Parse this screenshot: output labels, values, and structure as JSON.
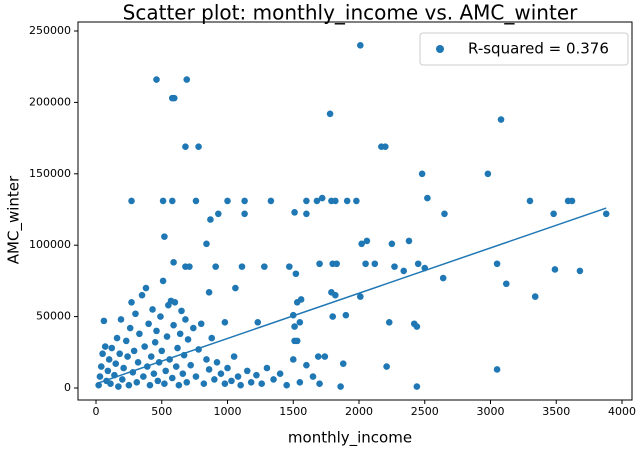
{
  "chart_data": {
    "type": "scatter",
    "title": "Scatter plot: monthly_income vs. AMC_winter",
    "x_label": "monthly_income",
    "y_label": "AMC_winter",
    "xlim": [
      -137,
      4076
    ],
    "ylim": [
      -8400,
      256300
    ],
    "xticks": [
      0,
      500,
      1000,
      1500,
      2000,
      2500,
      3000,
      3500,
      4000
    ],
    "yticks": [
      0,
      50000,
      100000,
      150000,
      200000,
      250000
    ],
    "legend_position": "upper right",
    "series": [
      {
        "name": "R-squared = 0.376",
        "color": "#1f77b4",
        "x": [
          2010,
          460,
          690,
          580,
          595,
          1780,
          3080,
          680,
          780,
          2170,
          2200,
          2480,
          2980,
          2520,
          270,
          510,
          580,
          760,
          1000,
          1130,
          1330,
          1600,
          1680,
          1720,
          1790,
          1820,
          1910,
          1980,
          3300,
          3590,
          3620,
          870,
          930,
          1130,
          1510,
          1600,
          2650,
          3880,
          3480,
          520,
          840,
          2020,
          2060,
          2250,
          2380,
          590,
          680,
          710,
          910,
          1110,
          1280,
          1470,
          1520,
          1700,
          1800,
          1830,
          2050,
          2120,
          2270,
          2340,
          2450,
          2500,
          2640,
          3050,
          3120,
          3490,
          3680,
          3340,
          1790,
          1820,
          2010,
          1800,
          1900,
          2230,
          2420,
          2440,
          1500,
          1510,
          1550,
          1230,
          980,
          860,
          1060,
          1530,
          1560,
          1690,
          1740,
          1880,
          1860,
          3050,
          1510,
          1530,
          2440,
          2210,
          20,
          30,
          40,
          50,
          60,
          70,
          80,
          90,
          100,
          110,
          120,
          140,
          150,
          160,
          170,
          180,
          190,
          200,
          210,
          230,
          240,
          250,
          260,
          270,
          280,
          290,
          300,
          310,
          320,
          330,
          350,
          360,
          370,
          380,
          390,
          400,
          410,
          420,
          430,
          440,
          450,
          460,
          470,
          480,
          490,
          500,
          510,
          520,
          530,
          540,
          550,
          560,
          570,
          580,
          590,
          600,
          610,
          620,
          630,
          640,
          650,
          660,
          670,
          680,
          690,
          700,
          720,
          740,
          760,
          780,
          800,
          820,
          840,
          860,
          880,
          900,
          920,
          950,
          980,
          1000,
          1030,
          1050,
          1080,
          1100,
          1150,
          1180,
          1220,
          1260,
          1300,
          1350,
          1400,
          1450,
          1500,
          1550,
          1600,
          1650,
          1700
        ],
        "y": [
          240000,
          216000,
          216000,
          203000,
          203000,
          192000,
          188000,
          169000,
          169000,
          169000,
          169000,
          150000,
          150000,
          133000,
          131000,
          131000,
          131000,
          131000,
          131000,
          131000,
          131000,
          131000,
          131000,
          133000,
          131000,
          131000,
          131000,
          131000,
          131000,
          131000,
          131000,
          118000,
          122000,
          122000,
          123000,
          122000,
          122000,
          122000,
          122000,
          106000,
          101000,
          101000,
          103000,
          101000,
          103000,
          88000,
          85000,
          85000,
          85000,
          85000,
          85000,
          85000,
          80000,
          87000,
          87000,
          87000,
          87000,
          87000,
          85000,
          82000,
          87000,
          84000,
          77000,
          87000,
          73000,
          83000,
          82000,
          64000,
          67000,
          65000,
          64000,
          50000,
          51000,
          46000,
          45000,
          43000,
          51000,
          43000,
          46000,
          46000,
          46000,
          67000,
          70000,
          60000,
          62000,
          22000,
          22000,
          17000,
          1000,
          13000,
          33000,
          33000,
          1000,
          15000,
          2000,
          8000,
          15000,
          24000,
          47000,
          29000,
          5000,
          12000,
          20000,
          3000,
          28000,
          9000,
          17000,
          35000,
          1000,
          24000,
          48000,
          6000,
          14000,
          33000,
          22000,
          2000,
          42000,
          60000,
          11000,
          26000,
          52000,
          4000,
          18000,
          38000,
          65000,
          8000,
          29000,
          70000,
          15000,
          45000,
          2000,
          22000,
          55000,
          10000,
          32000,
          40000,
          5000,
          18000,
          50000,
          26000,
          75000,
          3000,
          12000,
          36000,
          58000,
          20000,
          61000,
          7000,
          44000,
          60000,
          15000,
          28000,
          2000,
          38000,
          54000,
          10000,
          23000,
          48000,
          4000,
          34000,
          16000,
          42000,
          8000,
          27000,
          45000,
          3000,
          20000,
          13000,
          35000,
          6000,
          18000,
          10000,
          3000,
          14000,
          5000,
          22000,
          8000,
          2000,
          12000,
          4000,
          9000,
          3000,
          14000,
          6000,
          10000,
          2000,
          20000,
          4000,
          16000,
          8000,
          3000
        ]
      }
    ],
    "fit_line": {
      "color": "#1f77b4",
      "x": [
        10,
        3880
      ],
      "y": [
        3300,
        126000
      ]
    }
  }
}
